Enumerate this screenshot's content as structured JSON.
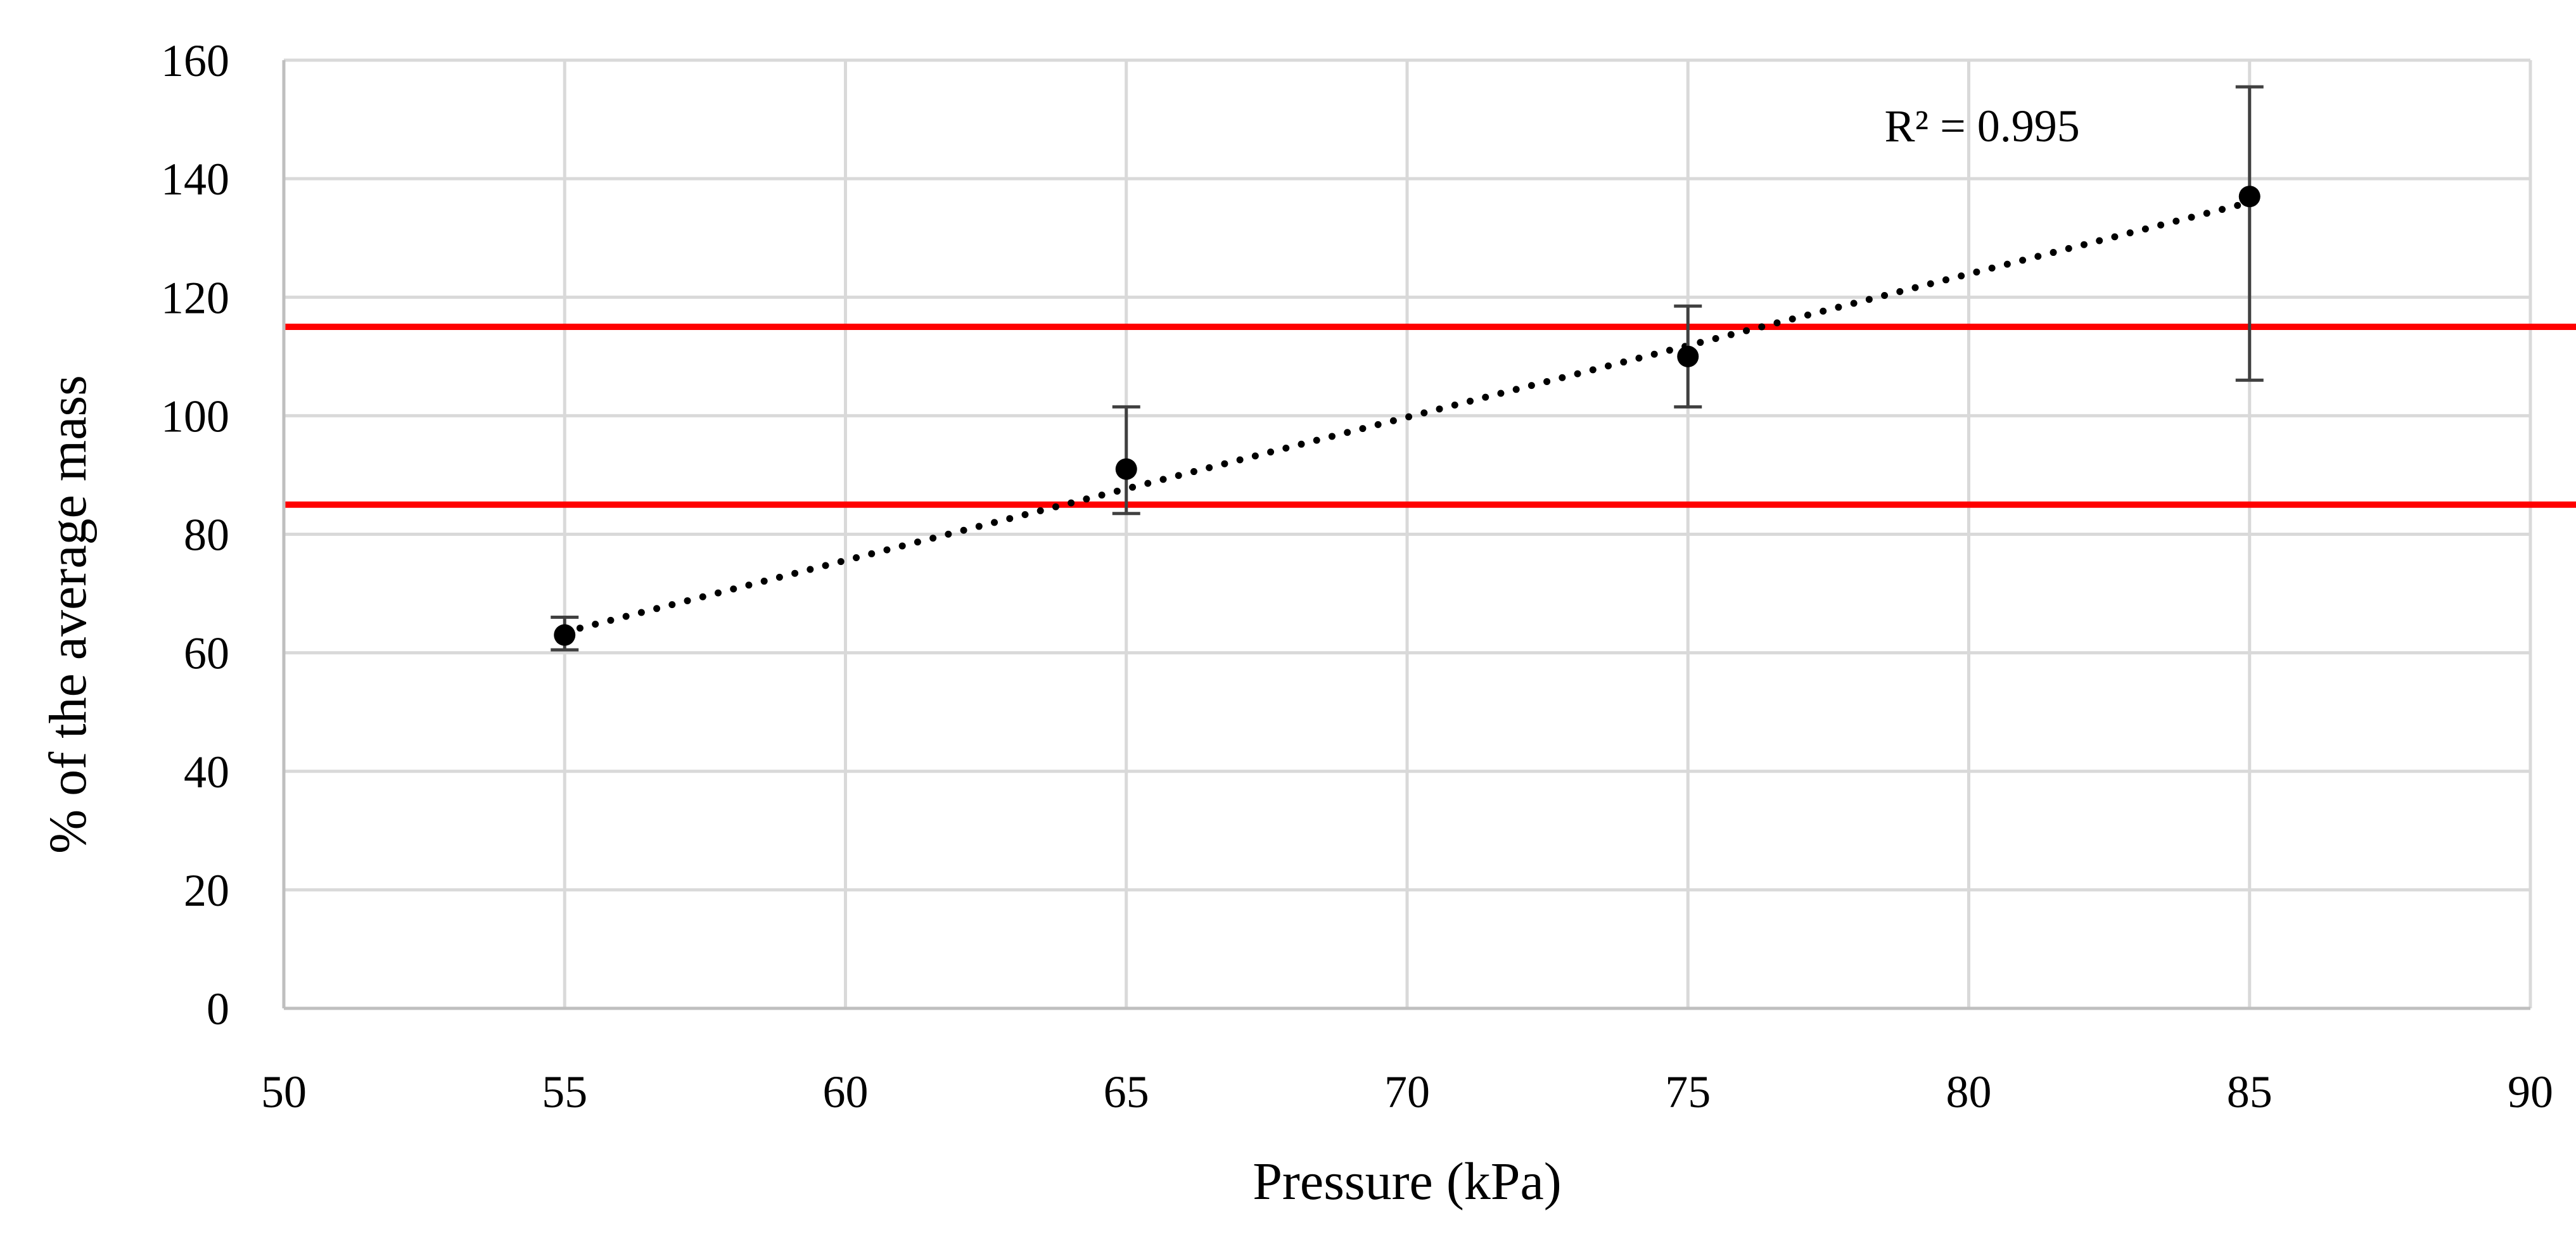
{
  "chart_data": {
    "type": "scatter",
    "title": "",
    "xlabel": "Pressure (kPa)",
    "ylabel": "% of the average mass",
    "xlim": [
      50,
      90
    ],
    "ylim": [
      0,
      160
    ],
    "xticks": [
      50,
      55,
      60,
      65,
      70,
      75,
      80,
      85,
      90
    ],
    "yticks": [
      0,
      20,
      40,
      60,
      80,
      100,
      120,
      140,
      160
    ],
    "grid": true,
    "series": [
      {
        "x": [
          55,
          65,
          75,
          85
        ],
        "y": [
          63,
          91,
          110,
          137
        ],
        "error_low": [
          60.5,
          83.5,
          101.5,
          106
        ],
        "error_high": [
          66,
          101.5,
          118.5,
          155.5
        ],
        "color": "#000000",
        "trendline": {
          "style": "dotted",
          "x": [
            55,
            85
          ],
          "y": [
            63.5,
            136
          ]
        }
      }
    ],
    "reference_lines": [
      {
        "y": 115,
        "color": "#ff0000"
      },
      {
        "y": 85,
        "color": "#ff0000"
      }
    ],
    "annotations": [
      {
        "text": "R² = 0.995",
        "x": 78.5,
        "y": 149
      }
    ]
  }
}
